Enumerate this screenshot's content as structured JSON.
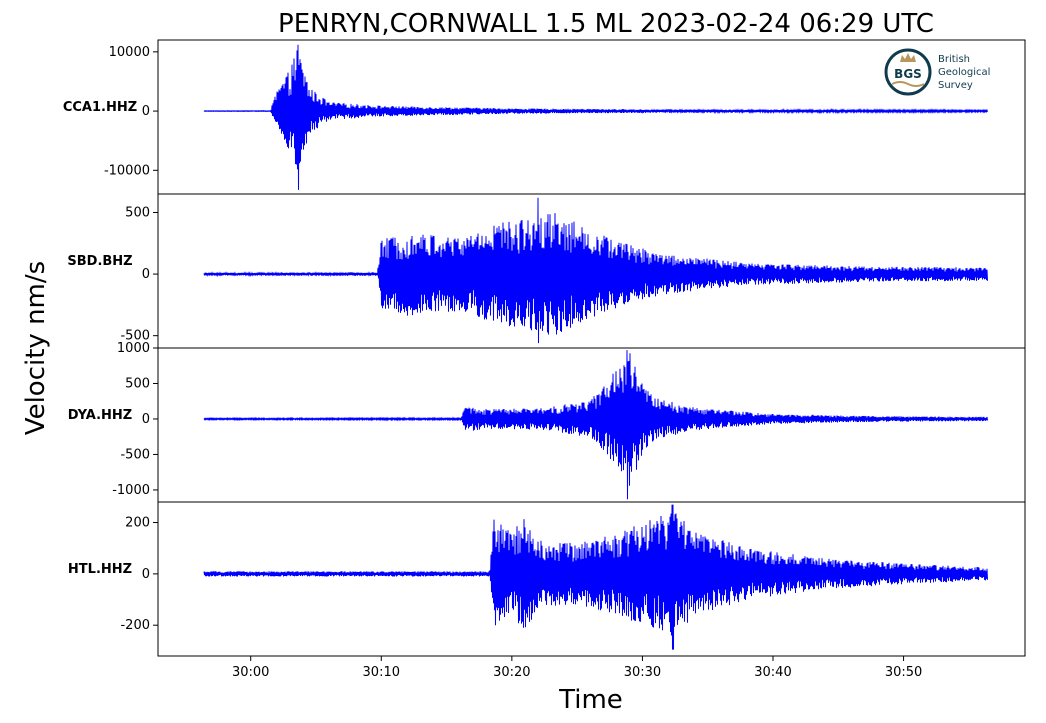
{
  "title": "PENRYN,CORNWALL 1.5 ML   2023-02-24 06:29 UTC",
  "ylabel": "Velocity nm/s",
  "xlabel": "Time",
  "logo": {
    "badge_text": "BGS",
    "lines": [
      "British",
      "Geological",
      "Survey"
    ],
    "colors": {
      "ring": "#0f3b4c",
      "gold": "#b8975a",
      "text": "#0f3b4c"
    },
    "icon": "bgs-crown-logo"
  },
  "colors": {
    "trace": "#0000ff",
    "axis": "#000000",
    "text": "#000000"
  },
  "chart_data": {
    "type": "line",
    "x_unit": "mm:ss",
    "x_ticks": [
      "30:00",
      "30:10",
      "30:20",
      "30:30",
      "30:40",
      "30:50"
    ],
    "x_tick_seconds": [
      0,
      10,
      20,
      30,
      40,
      50
    ],
    "xlim_seconds": [
      -7.1,
      59.3
    ],
    "trace_time_seconds": [
      -3.6,
      56.4
    ],
    "panels": [
      {
        "name": "CCA1.HHZ",
        "ylim": [
          -14000,
          12000
        ],
        "yticks": [
          10000,
          0,
          -10000
        ],
        "ytick_labels": [
          "10000",
          "0",
          "-10000"
        ],
        "onset_s": 1.6,
        "peak_s": 3.6,
        "pre_noise": 50,
        "max": 11200,
        "min": -13300,
        "envelope_points": [
          [
            -3.6,
            50
          ],
          [
            1.5,
            60
          ],
          [
            2.0,
            3500
          ],
          [
            3.0,
            7000
          ],
          [
            3.6,
            11000
          ],
          [
            4.5,
            4000
          ],
          [
            6.0,
            1500
          ],
          [
            10.0,
            900
          ],
          [
            14.0,
            700
          ],
          [
            20.0,
            450
          ],
          [
            30.0,
            300
          ],
          [
            45.0,
            200
          ],
          [
            56.4,
            150
          ]
        ]
      },
      {
        "name": "SBD.BHZ",
        "ylim": [
          -600,
          650
        ],
        "yticks": [
          500,
          0,
          -500
        ],
        "ytick_labels": [
          "500",
          "0",
          "-500"
        ],
        "onset_s": 9.8,
        "peak_s": 22.0,
        "pre_noise": 12,
        "max": 620,
        "min": -560,
        "envelope_points": [
          [
            -3.6,
            12
          ],
          [
            9.7,
            14
          ],
          [
            10.0,
            280
          ],
          [
            12.0,
            340
          ],
          [
            16.0,
            300
          ],
          [
            19.0,
            420
          ],
          [
            21.0,
            450
          ],
          [
            23.0,
            520
          ],
          [
            26.0,
            360
          ],
          [
            29.0,
            240
          ],
          [
            32.0,
            160
          ],
          [
            38.0,
            90
          ],
          [
            48.0,
            60
          ],
          [
            56.4,
            55
          ]
        ]
      },
      {
        "name": "DYA.HHZ",
        "ylim": [
          -1170,
          1000
        ],
        "yticks": [
          1000,
          500,
          0,
          -500,
          -1000
        ],
        "ytick_labels": [
          "1000",
          "500",
          "0",
          "-500",
          "-1000"
        ],
        "onset_s": 16.2,
        "peak_s": 28.8,
        "pre_noise": 10,
        "max": 970,
        "min": -1130,
        "envelope_points": [
          [
            -3.6,
            10
          ],
          [
            16.1,
            12
          ],
          [
            16.4,
            180
          ],
          [
            18.0,
            140
          ],
          [
            22.0,
            150
          ],
          [
            26.0,
            260
          ],
          [
            28.0,
            700
          ],
          [
            29.0,
            950
          ],
          [
            30.0,
            500
          ],
          [
            31.0,
            300
          ],
          [
            34.0,
            160
          ],
          [
            40.0,
            70
          ],
          [
            48.0,
            40
          ],
          [
            56.4,
            30
          ]
        ]
      },
      {
        "name": "HTL.HHZ",
        "ylim": [
          -320,
          280
        ],
        "yticks": [
          200,
          0,
          -200
        ],
        "ytick_labels": [
          "200",
          "0",
          "-200"
        ],
        "onset_s": 18.4,
        "peak_s": 32.3,
        "pre_noise": 9,
        "max": 270,
        "min": -295,
        "envelope_points": [
          [
            -3.6,
            10
          ],
          [
            18.3,
            10
          ],
          [
            18.6,
            220
          ],
          [
            20.0,
            160
          ],
          [
            21.0,
            230
          ],
          [
            22.0,
            130
          ],
          [
            25.0,
            120
          ],
          [
            28.0,
            160
          ],
          [
            31.0,
            220
          ],
          [
            32.3,
            250
          ],
          [
            34.0,
            170
          ],
          [
            38.0,
            100
          ],
          [
            44.0,
            60
          ],
          [
            50.0,
            40
          ],
          [
            56.4,
            25
          ]
        ]
      }
    ]
  }
}
